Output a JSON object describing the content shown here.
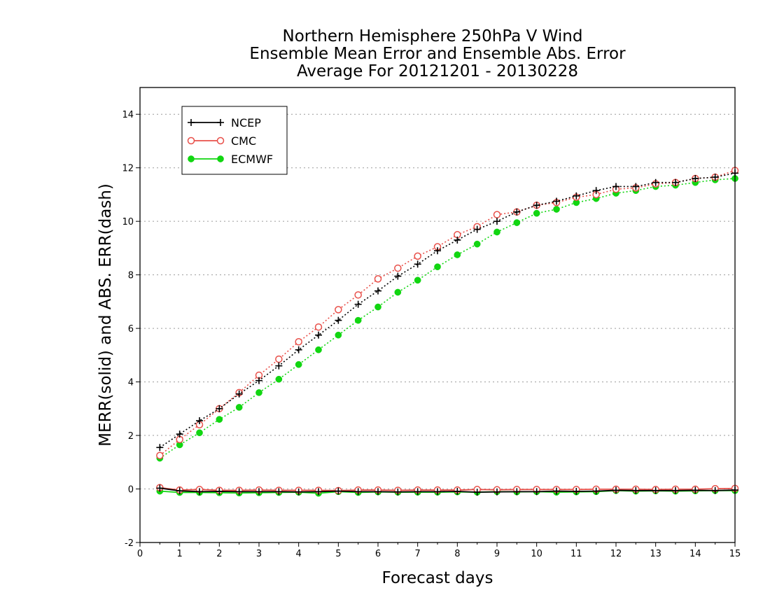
{
  "chart_data": {
    "type": "line",
    "title": [
      "Northern Hemisphere 250hPa V Wind",
      "Ensemble Mean Error and Ensemble Abs. Error",
      "Average For 20121201 - 20130228"
    ],
    "xlabel": "Forecast days",
    "ylabel": "MERR(solid) and ABS. ERR(dash)",
    "xlim": [
      0,
      15
    ],
    "ylim": [
      -2,
      15
    ],
    "xticks": [
      "0",
      "1",
      "2",
      "3",
      "4",
      "5",
      "6",
      "7",
      "8",
      "9",
      "10",
      "11",
      "12",
      "13",
      "14",
      "15"
    ],
    "yticks": [
      "-2",
      "0",
      "2",
      "4",
      "6",
      "8",
      "10",
      "12",
      "14"
    ],
    "grid": "horizontal dotted",
    "legend_placement": "top-left",
    "x": [
      0.5,
      1,
      1.5,
      2,
      2.5,
      3,
      3.5,
      4,
      4.5,
      5,
      5.5,
      6,
      6.5,
      7,
      7.5,
      8,
      8.5,
      9,
      9.5,
      10,
      10.5,
      11,
      11.5,
      12,
      12.5,
      13,
      13.5,
      14,
      14.5,
      15
    ],
    "series": [
      {
        "name": "NCEP",
        "color": "#000000",
        "marker": "plus",
        "abs_err": [
          1.55,
          2.05,
          2.55,
          3.0,
          3.55,
          4.05,
          4.6,
          5.2,
          5.75,
          6.3,
          6.9,
          7.4,
          7.95,
          8.4,
          8.9,
          9.3,
          9.7,
          10.0,
          10.35,
          10.6,
          10.75,
          10.95,
          11.15,
          11.3,
          11.3,
          11.45,
          11.45,
          11.6,
          11.65,
          11.8
        ],
        "mean_err": [
          0.03,
          -0.07,
          -0.1,
          -0.09,
          -0.1,
          -0.1,
          -0.1,
          -0.11,
          -0.1,
          -0.08,
          -0.1,
          -0.1,
          -0.11,
          -0.1,
          -0.1,
          -0.09,
          -0.12,
          -0.11,
          -0.1,
          -0.1,
          -0.08,
          -0.09,
          -0.08,
          -0.05,
          -0.06,
          -0.06,
          -0.06,
          -0.05,
          -0.06,
          -0.04
        ]
      },
      {
        "name": "CMC",
        "color": "#e8504a",
        "marker": "open-circle",
        "abs_err": [
          1.25,
          1.85,
          2.4,
          3.0,
          3.6,
          4.25,
          4.85,
          5.5,
          6.05,
          6.7,
          7.25,
          7.85,
          8.25,
          8.7,
          9.05,
          9.5,
          9.8,
          10.25,
          10.35,
          10.6,
          10.7,
          10.9,
          11.0,
          11.2,
          11.25,
          11.4,
          11.45,
          11.6,
          11.65,
          11.9
        ],
        "mean_err": [
          0.05,
          -0.04,
          -0.02,
          -0.05,
          -0.05,
          -0.04,
          -0.05,
          -0.05,
          -0.05,
          -0.06,
          -0.04,
          -0.04,
          -0.05,
          -0.04,
          -0.04,
          -0.04,
          -0.02,
          -0.03,
          -0.02,
          -0.02,
          -0.02,
          -0.02,
          -0.01,
          -0.01,
          -0.01,
          -0.02,
          -0.01,
          -0.01,
          0.01,
          0.02
        ]
      },
      {
        "name": "ECMWF",
        "color": "#11d611",
        "marker": "filled-circle",
        "abs_err": [
          1.15,
          1.65,
          2.1,
          2.6,
          3.05,
          3.6,
          4.1,
          4.65,
          5.2,
          5.75,
          6.3,
          6.8,
          7.35,
          7.8,
          8.3,
          8.75,
          9.15,
          9.6,
          9.95,
          10.3,
          10.45,
          10.7,
          10.85,
          11.05,
          11.15,
          11.3,
          11.35,
          11.45,
          11.55,
          11.6
        ],
        "mean_err": [
          -0.08,
          -0.13,
          -0.13,
          -0.14,
          -0.15,
          -0.14,
          -0.13,
          -0.12,
          -0.16,
          -0.1,
          -0.13,
          -0.11,
          -0.12,
          -0.12,
          -0.12,
          -0.11,
          -0.12,
          -0.1,
          -0.11,
          -0.1,
          -0.12,
          -0.11,
          -0.1,
          -0.06,
          -0.08,
          -0.07,
          -0.08,
          -0.07,
          -0.06,
          -0.06
        ]
      }
    ]
  }
}
